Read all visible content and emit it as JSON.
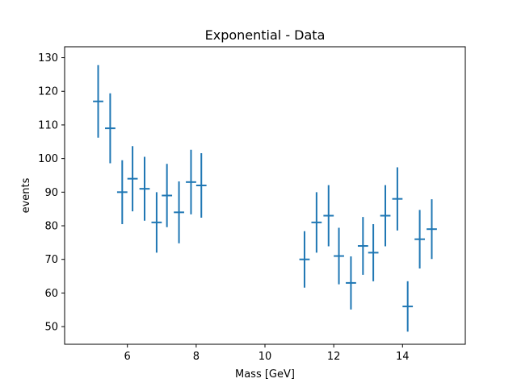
{
  "chart_data": {
    "type": "scatter",
    "title": "Exponential - Data",
    "xlabel": "Mass [GeV]",
    "ylabel": "events",
    "xlim": [
      4.175,
      15.825
    ],
    "ylim": [
      44.75,
      133.25
    ],
    "x_ticks": [
      6,
      8,
      10,
      12,
      14
    ],
    "y_ticks": [
      50,
      60,
      70,
      80,
      90,
      100,
      110,
      120,
      130
    ],
    "grid": false,
    "legend": "none",
    "x_errors": 0.15,
    "color": "#1f77b4",
    "points": [
      {
        "x": 5.15,
        "y": 117,
        "yerr": 10.8
      },
      {
        "x": 5.5,
        "y": 109,
        "yerr": 10.4
      },
      {
        "x": 5.85,
        "y": 90,
        "yerr": 9.5
      },
      {
        "x": 6.15,
        "y": 94,
        "yerr": 9.7
      },
      {
        "x": 6.5,
        "y": 91,
        "yerr": 9.5
      },
      {
        "x": 6.85,
        "y": 81,
        "yerr": 9.0
      },
      {
        "x": 7.15,
        "y": 89,
        "yerr": 9.4
      },
      {
        "x": 7.5,
        "y": 84,
        "yerr": 9.2
      },
      {
        "x": 7.85,
        "y": 93,
        "yerr": 9.6
      },
      {
        "x": 8.15,
        "y": 92,
        "yerr": 9.6
      },
      {
        "x": 11.15,
        "y": 70,
        "yerr": 8.4
      },
      {
        "x": 11.5,
        "y": 81,
        "yerr": 9.0
      },
      {
        "x": 11.85,
        "y": 83,
        "yerr": 9.1
      },
      {
        "x": 12.15,
        "y": 71,
        "yerr": 8.4
      },
      {
        "x": 12.5,
        "y": 63,
        "yerr": 7.9
      },
      {
        "x": 12.85,
        "y": 74,
        "yerr": 8.6
      },
      {
        "x": 13.15,
        "y": 72,
        "yerr": 8.5
      },
      {
        "x": 13.5,
        "y": 83,
        "yerr": 9.1
      },
      {
        "x": 13.85,
        "y": 88,
        "yerr": 9.4
      },
      {
        "x": 14.15,
        "y": 56,
        "yerr": 7.5
      },
      {
        "x": 14.5,
        "y": 76,
        "yerr": 8.7
      },
      {
        "x": 14.85,
        "y": 79,
        "yerr": 8.9
      }
    ]
  }
}
